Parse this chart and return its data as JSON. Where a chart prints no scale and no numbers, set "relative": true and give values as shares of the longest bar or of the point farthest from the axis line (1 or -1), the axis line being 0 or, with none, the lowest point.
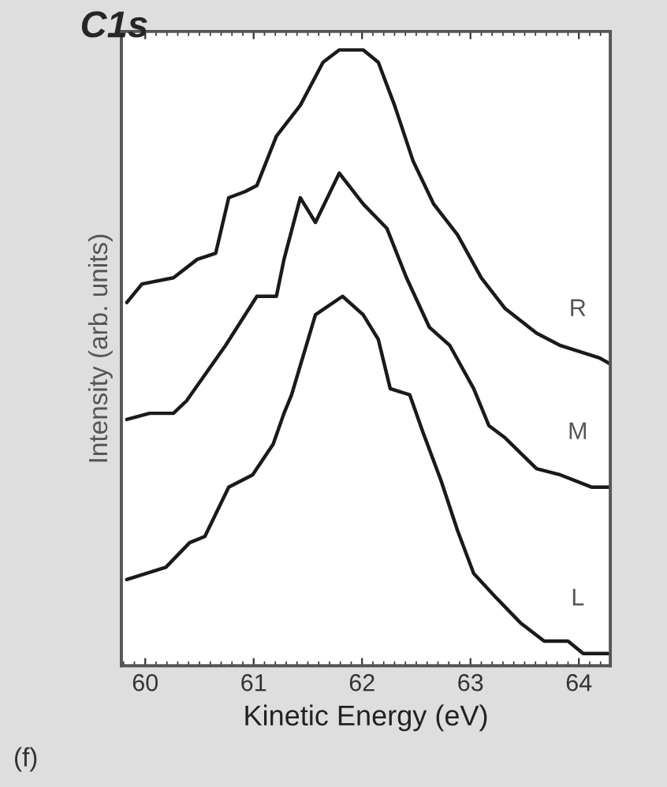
{
  "chart_data": {
    "type": "line",
    "title": "C1s",
    "xlabel": "Kinetic Energy (eV)",
    "ylabel": "Intensity (arb. units)",
    "relative": true,
    "xlim": [
      59.78,
      64.29
    ],
    "xticks": [
      60,
      61,
      62,
      63,
      64
    ],
    "tick_labels": "x",
    "grid": false,
    "legend": false,
    "marker": "none",
    "line_style": "solid",
    "annotations": [
      "(f)"
    ],
    "series": [
      {
        "name": "R",
        "color": "#1a1a1a",
        "x": [
          59.83,
          59.97,
          60.26,
          60.48,
          60.65,
          60.77,
          60.92,
          61.03,
          61.21,
          61.43,
          61.64,
          61.79,
          62.01,
          62.15,
          62.3,
          62.47,
          62.66,
          62.88,
          63.1,
          63.32,
          63.61,
          63.83,
          64.19,
          64.29
        ],
        "values": [
          0.59,
          0.62,
          0.63,
          0.66,
          0.67,
          0.76,
          0.77,
          0.78,
          0.86,
          0.91,
          0.98,
          1.0,
          1.0,
          0.98,
          0.91,
          0.82,
          0.75,
          0.7,
          0.63,
          0.58,
          0.54,
          0.52,
          0.5,
          0.49
        ]
      },
      {
        "name": "M",
        "color": "#1a1a1a",
        "x": [
          59.83,
          60.04,
          60.26,
          60.38,
          60.74,
          61.03,
          61.21,
          61.28,
          61.43,
          61.57,
          61.79,
          62.01,
          62.23,
          62.41,
          62.62,
          62.81,
          63.03,
          63.17,
          63.32,
          63.61,
          63.83,
          64.12,
          64.29
        ],
        "values": [
          0.4,
          0.41,
          0.41,
          0.43,
          0.52,
          0.6,
          0.6,
          0.66,
          0.76,
          0.72,
          0.8,
          0.75,
          0.71,
          0.63,
          0.55,
          0.52,
          0.45,
          0.39,
          0.37,
          0.32,
          0.31,
          0.29,
          0.29
        ]
      },
      {
        "name": "L",
        "color": "#1a1a1a",
        "x": [
          59.83,
          60.19,
          60.41,
          60.55,
          60.77,
          60.99,
          61.18,
          61.28,
          61.35,
          61.57,
          61.82,
          62.01,
          62.15,
          62.26,
          62.44,
          62.56,
          62.73,
          62.88,
          63.03,
          63.24,
          63.46,
          63.68,
          63.9,
          64.04,
          64.29
        ],
        "values": [
          0.14,
          0.16,
          0.2,
          0.21,
          0.29,
          0.31,
          0.36,
          0.41,
          0.44,
          0.57,
          0.6,
          0.57,
          0.53,
          0.45,
          0.44,
          0.38,
          0.3,
          0.22,
          0.15,
          0.11,
          0.07,
          0.04,
          0.04,
          0.02,
          0.02
        ]
      }
    ]
  }
}
